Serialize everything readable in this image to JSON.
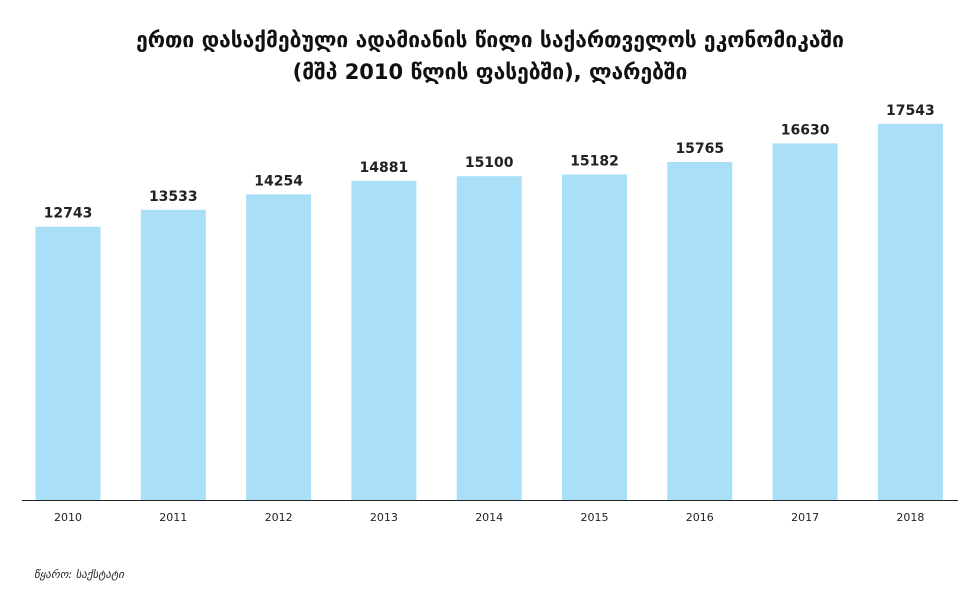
{
  "chart_data": {
    "type": "bar",
    "title_line1": "ერთი დასაქმებული ადამიანის წილი საქართველოს ეკონომიკაში",
    "title_line2": "(მშპ 2010 წლის ფასებში), ლარებში",
    "categories": [
      "2010",
      "2011",
      "2012",
      "2013",
      "2014",
      "2015",
      "2016",
      "2017",
      "2018"
    ],
    "values": [
      12743,
      13533,
      14254,
      14881,
      15100,
      15182,
      15765,
      16630,
      17543
    ],
    "xlabel": "",
    "ylabel": "",
    "ylim": [
      0,
      18000
    ],
    "grid": false,
    "bar_color": "#aadff8",
    "source": "წყარო: საქსტატი"
  }
}
